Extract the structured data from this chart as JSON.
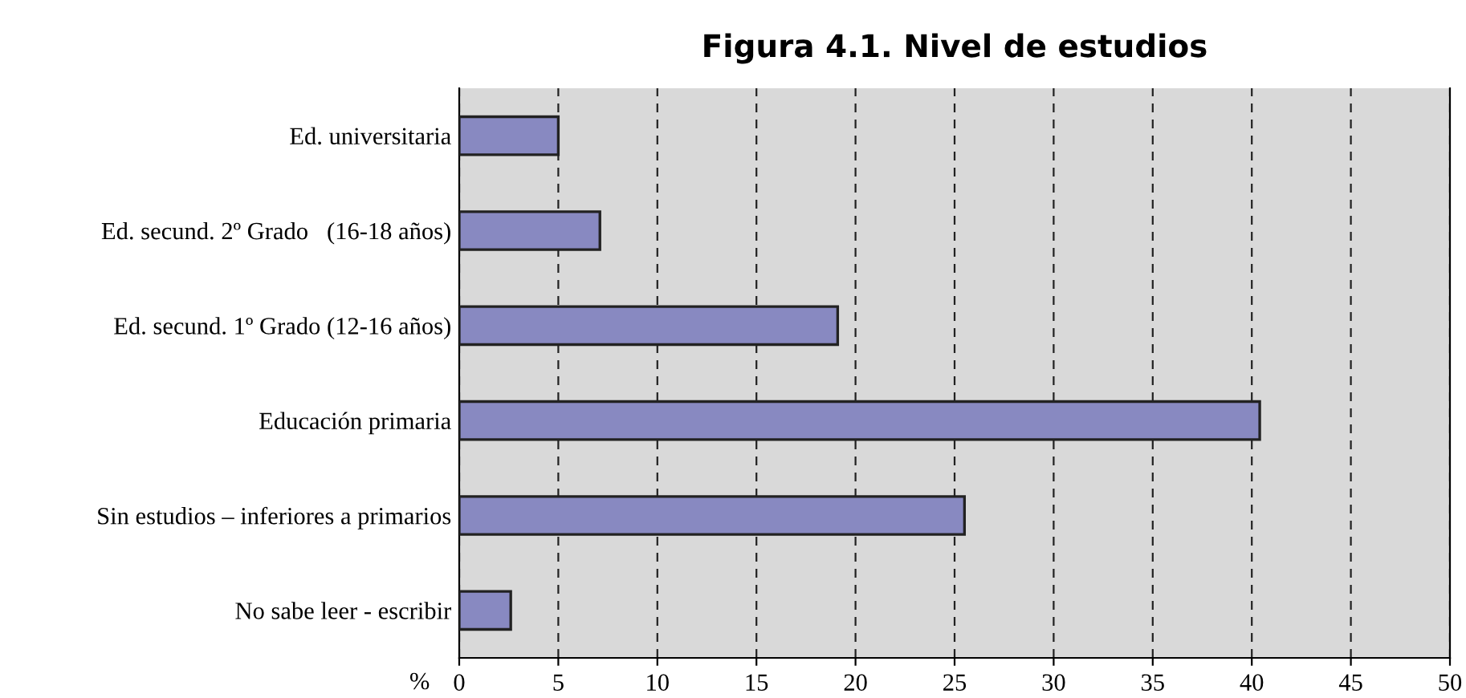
{
  "chart_data": {
    "type": "bar",
    "orientation": "horizontal",
    "title": "Figura 4.1. Nivel de estudios",
    "xlabel": "%",
    "categories": [
      "Ed. universitaria",
      "Ed. secund. 2º Grado   (16-18 años)",
      "Ed. secund. 1º Grado (12-16 años)",
      "Educación primaria",
      "Sin estudios – inferiores a primarios",
      "No sabe leer - escribir"
    ],
    "values": [
      5.0,
      7.1,
      19.1,
      40.4,
      25.5,
      2.6
    ],
    "color": "#8889c1",
    "xlim": [
      0,
      50
    ],
    "xticks": [
      0,
      5,
      10,
      15,
      20,
      25,
      30,
      35,
      40,
      45,
      50
    ],
    "grid": "x"
  }
}
